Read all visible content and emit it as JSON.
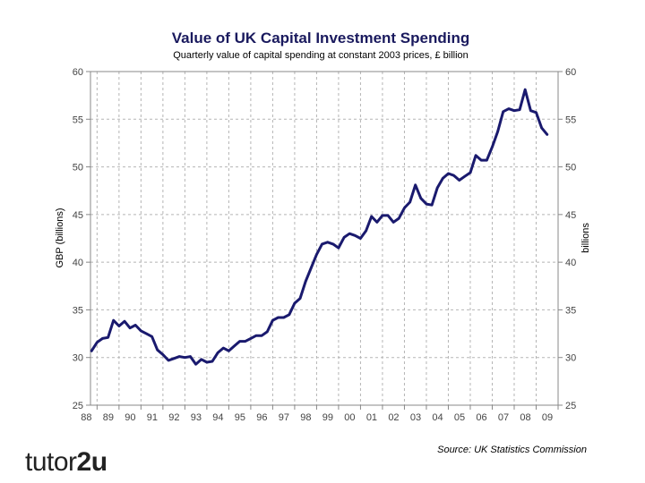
{
  "chart_data": {
    "type": "line",
    "title": "Value of UK Capital Investment Spending",
    "subtitle": "Quarterly value of capital spending at constant 2003 prices, £ billion",
    "ylabel": "GBP (billions)",
    "ylabel_right": "billions",
    "source": "Source: UK Statistics Commission",
    "ylim": [
      25,
      60
    ],
    "yticks": [
      60,
      55,
      50,
      45,
      40,
      35,
      30,
      25
    ],
    "xlim": [
      1987.7,
      2009.0
    ],
    "xtick_labels": [
      "88",
      "89",
      "90",
      "91",
      "92",
      "93",
      "94",
      "95",
      "96",
      "97",
      "98",
      "99",
      "00",
      "01",
      "02",
      "03",
      "04",
      "05",
      "06",
      "07",
      "08",
      "09"
    ],
    "xtick_values": [
      1988,
      1989,
      1990,
      1991,
      1992,
      1993,
      1994,
      1995,
      1996,
      1997,
      1998,
      1999,
      2000,
      2001,
      2002,
      2003,
      2004,
      2005,
      2006,
      2007,
      2008,
      2009
    ],
    "grid": true,
    "series": [
      {
        "name": "Capital investment spending",
        "color": "#1a1a6e",
        "x": [
          1987.75,
          1988.0,
          1988.25,
          1988.5,
          1988.75,
          1989.0,
          1989.25,
          1989.5,
          1989.75,
          1990.0,
          1990.25,
          1990.5,
          1990.75,
          1991.0,
          1991.25,
          1991.5,
          1991.75,
          1992.0,
          1992.25,
          1992.5,
          1992.75,
          1993.0,
          1993.25,
          1993.5,
          1993.75,
          1994.0,
          1994.25,
          1994.5,
          1994.75,
          1995.0,
          1995.25,
          1995.5,
          1995.75,
          1996.0,
          1996.25,
          1996.5,
          1996.75,
          1997.0,
          1997.25,
          1997.5,
          1997.75,
          1998.0,
          1998.25,
          1998.5,
          1998.75,
          1999.0,
          1999.25,
          1999.5,
          1999.75,
          2000.0,
          2000.25,
          2000.5,
          2000.75,
          2001.0,
          2001.25,
          2001.5,
          2001.75,
          2002.0,
          2002.25,
          2002.5,
          2002.75,
          2003.0,
          2003.25,
          2003.5,
          2003.75,
          2004.0,
          2004.25,
          2004.5,
          2004.75,
          2005.0,
          2005.25,
          2005.5,
          2005.75,
          2006.0,
          2006.25,
          2006.5,
          2006.75,
          2007.0,
          2007.25,
          2007.5,
          2007.75,
          2008.0,
          2008.25,
          2008.5
        ],
        "values": [
          30.7,
          31.6,
          32.0,
          32.1,
          33.9,
          33.3,
          33.8,
          33.1,
          33.4,
          32.8,
          32.5,
          32.2,
          30.8,
          30.3,
          29.7,
          29.9,
          30.1,
          30.0,
          30.1,
          29.3,
          29.8,
          29.5,
          29.6,
          30.5,
          31.0,
          30.7,
          31.2,
          31.7,
          31.7,
          32.0,
          32.3,
          32.3,
          32.7,
          33.9,
          34.2,
          34.2,
          34.5,
          35.7,
          36.2,
          38.0,
          39.4,
          40.8,
          41.9,
          42.1,
          41.9,
          41.5,
          42.6,
          43.0,
          42.8,
          42.5,
          43.3,
          44.8,
          44.2,
          44.9,
          44.9,
          44.2,
          44.6,
          45.7,
          46.3,
          48.1,
          46.7,
          46.1,
          46.0,
          47.8,
          48.8,
          49.3,
          49.1,
          48.6,
          49.0,
          49.4,
          51.2,
          50.7,
          50.7,
          52.1,
          53.7,
          55.8,
          56.1,
          55.9,
          56.0,
          58.1,
          55.9,
          55.7,
          54.1,
          53.4
        ]
      }
    ]
  },
  "brand": {
    "part1": "tutor",
    "part2": "2u"
  }
}
